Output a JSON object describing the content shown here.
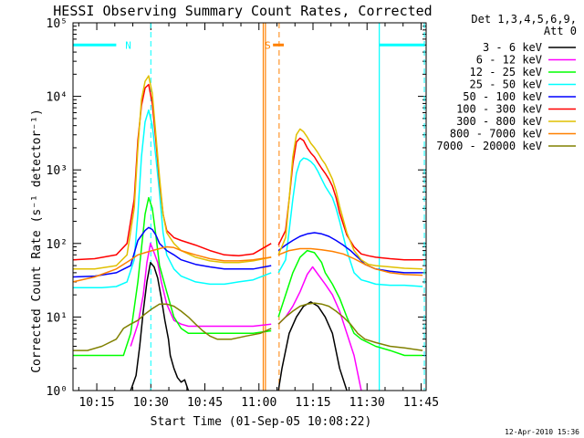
{
  "colors": {
    "cyan": "#00ffff",
    "orange": "#ff8000",
    "background": "#ffffff",
    "axes": "#000000"
  },
  "chart_data": {
    "type": "line",
    "title": "HESSI Observing Summary Count Rates, Corrected",
    "xlabel": "Start Time (01-Sep-05 10:08:22)",
    "ylabel": "Corrected Count Rate (s⁻¹ detector⁻¹)",
    "x_unit": "minutes after 10:08:22",
    "xlim": [
      0,
      98
    ],
    "ylim": [
      1,
      100000
    ],
    "yscale": "log",
    "x_ticks": [
      {
        "value": 6.6,
        "label": "10:15"
      },
      {
        "value": 21.6,
        "label": "10:30"
      },
      {
        "value": 36.6,
        "label": "10:45"
      },
      {
        "value": 51.6,
        "label": "11:00"
      },
      {
        "value": 66.6,
        "label": "11:15"
      },
      {
        "value": 81.6,
        "label": "11:30"
      },
      {
        "value": 96.6,
        "label": "11:45"
      }
    ],
    "y_ticks": [
      {
        "value": 1,
        "label": "10⁰"
      },
      {
        "value": 10,
        "label": "10¹"
      },
      {
        "value": 100,
        "label": "10²"
      },
      {
        "value": 1000,
        "label": "10³"
      },
      {
        "value": 10000,
        "label": "10⁴"
      },
      {
        "value": 100000,
        "label": "10⁵"
      }
    ],
    "legend": {
      "position": "right, outside",
      "header": [
        "Det 1,3,4,5,6,9,",
        "Att 0"
      ]
    },
    "series": [
      {
        "name": "3 - 6 keV",
        "color": "#000000",
        "segments": [
          {
            "x": [
              16,
              17.5,
              18.5,
              19.5,
              20.5,
              21.5,
              22.5,
              23.5,
              24.5,
              25.5,
              26.5,
              27,
              28,
              29,
              30,
              31,
              32
            ],
            "y": [
              1,
              1.6,
              4,
              12,
              30,
              55,
              48,
              34,
              18,
              9,
              5,
              3,
              2,
              1.5,
              1.3,
              1.4,
              1
            ]
          },
          {
            "x": [
              57,
              58,
              60,
              62,
              64,
              66,
              68,
              70,
              72,
              74,
              76
            ],
            "y": [
              1,
              2,
              6,
              10,
              14,
              16,
              14,
              10,
              6,
              2,
              1
            ]
          }
        ]
      },
      {
        "name": "6 - 12 keV",
        "color": "#ff00ff",
        "segments": [
          {
            "x": [
              16,
              18,
              19.5,
              20.5,
              21.5,
              22.5,
              23.5,
              24.5,
              26,
              28,
              30,
              32,
              34,
              36,
              40,
              45,
              50,
              55
            ],
            "y": [
              4,
              8,
              20,
              55,
              100,
              75,
              55,
              30,
              15,
              9,
              8,
              7.5,
              7.5,
              7.5,
              7.5,
              7.5,
              7.5,
              8
            ]
          },
          {
            "x": [
              57,
              59,
              61,
              63,
              65,
              66.5,
              68,
              70,
              72,
              74,
              76,
              78,
              80
            ],
            "y": [
              8,
              10,
              14,
              22,
              38,
              48,
              38,
              28,
              20,
              12,
              6,
              3,
              1
            ]
          }
        ]
      },
      {
        "name": "12 - 25 keV",
        "color": "#00ff00",
        "segments": [
          {
            "x": [
              0,
              2,
              4,
              6,
              8,
              10,
              12,
              14,
              16,
              18,
              20,
              21,
              22,
              23,
              24,
              26,
              28,
              30,
              32,
              34,
              36,
              40,
              45,
              50,
              55
            ],
            "y": [
              3,
              3,
              3,
              3,
              3,
              3,
              3,
              3,
              6,
              30,
              250,
              420,
              300,
              130,
              50,
              22,
              10,
              7,
              6,
              6,
              6,
              6,
              6,
              6,
              6.5
            ]
          },
          {
            "x": [
              57,
              59,
              61,
              63,
              65,
              67,
              69,
              70,
              72,
              74,
              76,
              78,
              80,
              84,
              88,
              92,
              97
            ],
            "y": [
              10,
              20,
              40,
              65,
              80,
              75,
              55,
              40,
              28,
              18,
              10,
              6,
              5,
              4,
              3.5,
              3,
              3
            ]
          }
        ]
      },
      {
        "name": "25 - 50 keV",
        "color": "#00ffff",
        "segments": [
          {
            "x": [
              0,
              4,
              8,
              12,
              15,
              17,
              18,
              19,
              20,
              21,
              22,
              23,
              24,
              25,
              26,
              28,
              30,
              34,
              38,
              42,
              46,
              50,
              55
            ],
            "y": [
              25,
              25,
              25,
              26,
              30,
              60,
              250,
              1500,
              4500,
              6500,
              4000,
              1500,
              500,
              140,
              70,
              45,
              36,
              30,
              28,
              28,
              30,
              32,
              40
            ]
          },
          {
            "x": [
              57,
              59,
              60,
              61,
              62,
              63,
              64,
              65,
              66,
              67,
              68,
              69,
              70,
              71,
              72,
              73,
              74,
              76,
              78,
              80,
              82,
              84,
              88,
              92,
              97
            ],
            "y": [
              40,
              60,
              150,
              400,
              900,
              1300,
              1450,
              1400,
              1300,
              1150,
              950,
              750,
              600,
              500,
              420,
              300,
              200,
              80,
              40,
              32,
              30,
              28,
              27,
              27,
              26
            ]
          }
        ]
      },
      {
        "name": "50 - 100 keV",
        "color": "#0000ff",
        "segments": [
          {
            "x": [
              0,
              6,
              12,
              16,
              18,
              20,
              21,
              22,
              23,
              24,
              26,
              28,
              30,
              34,
              38,
              42,
              46,
              50,
              55
            ],
            "y": [
              35,
              36,
              40,
              50,
              110,
              150,
              165,
              155,
              130,
              100,
              80,
              70,
              60,
              52,
              48,
              45,
              45,
              45,
              50
            ]
          },
          {
            "x": [
              57,
              59,
              61,
              63,
              65,
              67,
              69,
              71,
              73,
              75,
              77,
              79,
              81,
              84,
              88,
              92,
              97
            ],
            "y": [
              80,
              95,
              110,
              125,
              135,
              140,
              135,
              125,
              110,
              95,
              80,
              65,
              52,
              45,
              42,
              40,
              40
            ]
          }
        ]
      },
      {
        "name": "100 - 300 keV",
        "color": "#ff0000",
        "segments": [
          {
            "x": [
              0,
              6,
              12,
              15,
              17,
              18,
              19,
              20,
              21,
              22,
              23,
              24,
              25,
              26,
              28,
              30,
              34,
              38,
              42,
              46,
              50,
              55
            ],
            "y": [
              60,
              62,
              70,
              100,
              400,
              2500,
              7500,
              13000,
              14500,
              8000,
              2500,
              700,
              250,
              150,
              120,
              110,
              95,
              80,
              70,
              68,
              72,
              100
            ]
          },
          {
            "x": [
              57,
              59,
              60,
              61,
              62,
              63,
              64,
              65,
              66,
              67,
              68,
              69,
              70,
              71,
              72,
              73,
              74,
              76,
              78,
              80,
              82,
              84,
              88,
              92,
              97
            ],
            "y": [
              95,
              150,
              400,
              1200,
              2400,
              2700,
              2500,
              2000,
              1700,
              1500,
              1250,
              1050,
              900,
              750,
              600,
              420,
              260,
              130,
              90,
              72,
              68,
              65,
              62,
              60,
              60
            ]
          }
        ]
      },
      {
        "name": "300 - 800 keV",
        "color": "#e0c000",
        "segments": [
          {
            "x": [
              0,
              6,
              12,
              15,
              17,
              18,
              19,
              20,
              21,
              22,
              23,
              24,
              25,
              26,
              28,
              30,
              34,
              38,
              42,
              46,
              50,
              55
            ],
            "y": [
              45,
              45,
              50,
              70,
              300,
              2000,
              9000,
              16000,
              19000,
              11000,
              3000,
              800,
              250,
              140,
              100,
              80,
              65,
              58,
              55,
              55,
              58,
              65
            ]
          },
          {
            "x": [
              57,
              59,
              60,
              61,
              62,
              63,
              64,
              65,
              66,
              67,
              68,
              69,
              70,
              71,
              72,
              73,
              74,
              76,
              78,
              80,
              82,
              84,
              88,
              92,
              97
            ],
            "y": [
              70,
              120,
              400,
              1500,
              3000,
              3600,
              3300,
              2800,
              2300,
              2000,
              1700,
              1400,
              1200,
              950,
              750,
              520,
              320,
              140,
              80,
              60,
              52,
              50,
              48,
              46,
              45
            ]
          }
        ]
      },
      {
        "name": "800 - 7000 keV",
        "color": "#ff8000",
        "segments": [
          {
            "x": [
              0,
              6,
              12,
              16,
              18,
              20,
              22,
              24,
              26,
              28,
              30,
              34,
              38,
              42,
              46,
              50,
              55
            ],
            "y": [
              30,
              35,
              45,
              60,
              70,
              75,
              80,
              85,
              90,
              88,
              80,
              70,
              62,
              58,
              58,
              60,
              65
            ]
          },
          {
            "x": [
              57,
              60,
              63,
              66,
              69,
              72,
              75,
              78,
              81,
              84,
              88,
              92,
              97
            ],
            "y": [
              70,
              80,
              85,
              85,
              82,
              78,
              72,
              62,
              52,
              45,
              40,
              38,
              37
            ]
          }
        ]
      },
      {
        "name": "7000 - 20000 keV",
        "color": "#808000",
        "segments": [
          {
            "x": [
              0,
              4,
              8,
              12,
              14,
              16,
              18,
              20,
              22,
              24,
              26,
              28,
              30,
              32,
              34,
              36,
              38,
              40,
              44,
              48,
              52,
              55
            ],
            "y": [
              3.5,
              3.5,
              4,
              5,
              7,
              8,
              9,
              11,
              13,
              15,
              15,
              14,
              12,
              10,
              8,
              6.5,
              5.5,
              5,
              5,
              5.5,
              6,
              7
            ]
          },
          {
            "x": [
              57,
              59,
              61,
              63,
              65,
              67,
              69,
              71,
              73,
              75,
              77,
              79,
              81,
              84,
              88,
              92,
              97
            ],
            "y": [
              8,
              10,
              12,
              14,
              15,
              15.5,
              15,
              14,
              12,
              10,
              8,
              6,
              5,
              4.5,
              4,
              3.8,
              3.5
            ]
          }
        ]
      }
    ],
    "intervals": [
      {
        "label": "N",
        "color": "#00ffff",
        "y": 50000,
        "spans": [
          [
            0,
            12
          ],
          [
            85,
            97.5
          ]
        ],
        "dashed_at": [
          21.6,
          97.5
        ],
        "solid_at": [
          85
        ]
      },
      {
        "label": "S",
        "color": "#ff8000",
        "y": 50000,
        "spans": [
          [
            55.5,
            58.5
          ]
        ],
        "solid_at": [
          52.8,
          53.4
        ],
        "dashed_at": [
          57.2
        ]
      }
    ]
  },
  "footer": {
    "timestamp": "12-Apr-2010 15:36"
  }
}
